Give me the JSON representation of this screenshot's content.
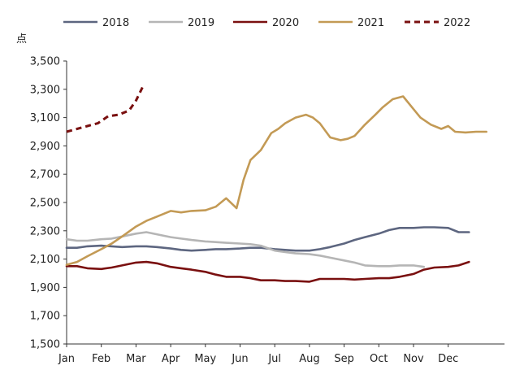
{
  "chart_data": {
    "type": "line",
    "title": "",
    "xlabel": "",
    "ylabel": "点",
    "ylim": [
      1500,
      3500
    ],
    "yticks": [
      1500,
      1700,
      1900,
      2100,
      2300,
      2500,
      2700,
      2900,
      3100,
      3300,
      3500
    ],
    "ytick_labels": [
      "1,500",
      "1,700",
      "1,900",
      "2,100",
      "2,300",
      "2,500",
      "2,700",
      "2,900",
      "3,100",
      "3,300",
      "3,500"
    ],
    "xlim": [
      0,
      12.3
    ],
    "categories": [
      "Jan",
      "Feb",
      "Mar",
      "Apr",
      "May",
      "Jun",
      "Jul",
      "Aug",
      "Sep",
      "Oct",
      "Nov",
      "Dec"
    ],
    "grid": false,
    "legend_position": "top",
    "series": [
      {
        "name": "2018",
        "color": "#5d6680",
        "dashed": false,
        "x": [
          0,
          0.3,
          0.6,
          1.0,
          1.3,
          1.6,
          2.0,
          2.3,
          2.6,
          3.0,
          3.3,
          3.6,
          4.0,
          4.3,
          4.6,
          5.0,
          5.3,
          5.6,
          6.0,
          6.3,
          6.6,
          7.0,
          7.3,
          7.6,
          8.0,
          8.3,
          8.6,
          9.0,
          9.3,
          9.6,
          10.0,
          10.3,
          10.6,
          11.0,
          11.3,
          11.6
        ],
        "values": [
          2180,
          2180,
          2190,
          2195,
          2190,
          2185,
          2190,
          2190,
          2185,
          2175,
          2165,
          2160,
          2165,
          2170,
          2170,
          2175,
          2180,
          2180,
          2170,
          2165,
          2160,
          2160,
          2170,
          2185,
          2210,
          2235,
          2255,
          2280,
          2305,
          2320,
          2320,
          2325,
          2325,
          2320,
          2290,
          2290
        ]
      },
      {
        "name": "2019",
        "color": "#b5b5b5",
        "dashed": false,
        "x": [
          0,
          0.3,
          0.6,
          1.0,
          1.3,
          1.6,
          2.0,
          2.3,
          2.6,
          3.0,
          3.3,
          3.6,
          4.0,
          4.3,
          4.6,
          5.0,
          5.3,
          5.6,
          6.0,
          6.3,
          6.6,
          7.0,
          7.3,
          7.6,
          8.0,
          8.3,
          8.6,
          9.0,
          9.3,
          9.6,
          10.0,
          10.3
        ],
        "values": [
          2240,
          2230,
          2230,
          2240,
          2245,
          2260,
          2280,
          2290,
          2275,
          2255,
          2245,
          2235,
          2225,
          2220,
          2215,
          2210,
          2205,
          2195,
          2160,
          2150,
          2140,
          2135,
          2125,
          2110,
          2090,
          2075,
          2055,
          2050,
          2050,
          2055,
          2055,
          2045
        ]
      },
      {
        "name": "2020",
        "color": "#7a1010",
        "dashed": false,
        "x": [
          0,
          0.3,
          0.6,
          1.0,
          1.3,
          1.6,
          2.0,
          2.3,
          2.6,
          3.0,
          3.3,
          3.6,
          4.0,
          4.3,
          4.6,
          5.0,
          5.3,
          5.6,
          6.0,
          6.3,
          6.6,
          7.0,
          7.3,
          7.6,
          8.0,
          8.3,
          8.6,
          9.0,
          9.3,
          9.6,
          10.0,
          10.3,
          10.6,
          11.0,
          11.3,
          11.6
        ],
        "values": [
          2050,
          2050,
          2035,
          2030,
          2040,
          2055,
          2075,
          2080,
          2070,
          2045,
          2035,
          2025,
          2010,
          1990,
          1975,
          1975,
          1965,
          1950,
          1950,
          1945,
          1945,
          1940,
          1960,
          1960,
          1960,
          1955,
          1960,
          1965,
          1965,
          1975,
          1995,
          2025,
          2040,
          2045,
          2055,
          2080
        ]
      },
      {
        "name": "2021",
        "color": "#c39a55",
        "dashed": false,
        "x": [
          0,
          0.3,
          0.6,
          1.0,
          1.3,
          1.6,
          2.0,
          2.3,
          2.6,
          3.0,
          3.3,
          3.6,
          4.0,
          4.3,
          4.6,
          4.9,
          5.1,
          5.3,
          5.6,
          5.9,
          6.1,
          6.3,
          6.6,
          6.9,
          7.1,
          7.3,
          7.6,
          7.9,
          8.1,
          8.3,
          8.6,
          8.9,
          9.1,
          9.4,
          9.7,
          10.0,
          10.2,
          10.5,
          10.8,
          11.0,
          11.2,
          11.5,
          11.8,
          12.1
        ],
        "values": [
          2060,
          2080,
          2120,
          2170,
          2210,
          2260,
          2330,
          2370,
          2400,
          2440,
          2430,
          2440,
          2445,
          2470,
          2530,
          2460,
          2660,
          2800,
          2870,
          2990,
          3020,
          3060,
          3100,
          3120,
          3100,
          3060,
          2960,
          2940,
          2950,
          2970,
          3050,
          3120,
          3170,
          3230,
          3250,
          3160,
          3100,
          3050,
          3020,
          3040,
          3000,
          2995,
          3000,
          3000
        ]
      },
      {
        "name": "2022",
        "color": "#7a1010",
        "dashed": true,
        "x": [
          0,
          0.3,
          0.6,
          0.9,
          1.2,
          1.5,
          1.8,
          2.0,
          2.2
        ],
        "values": [
          3000,
          3020,
          3040,
          3060,
          3110,
          3120,
          3150,
          3220,
          3320
        ]
      }
    ]
  }
}
